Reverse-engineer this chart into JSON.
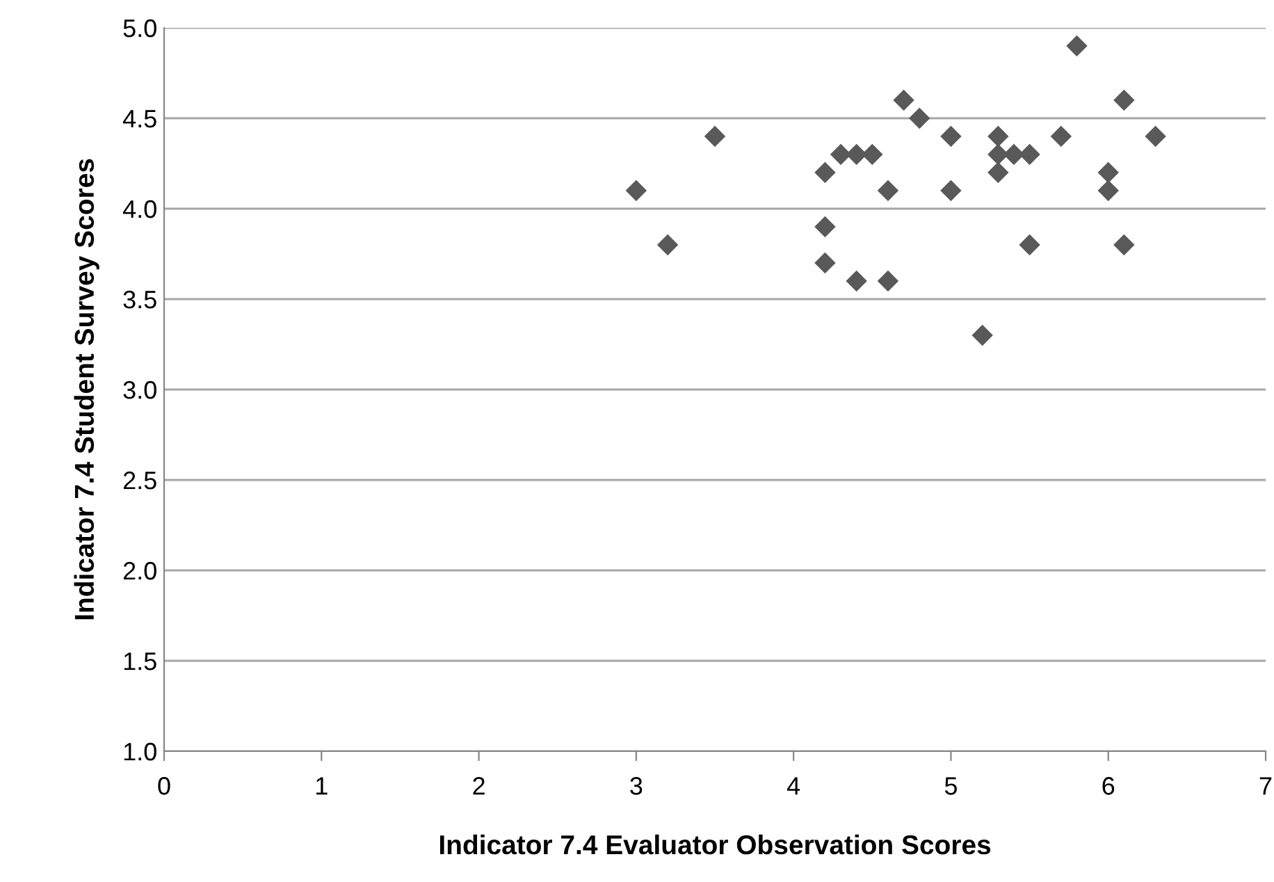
{
  "chart_data": {
    "type": "scatter",
    "xlabel": "Indicator 7.4 Evaluator Observation Scores",
    "ylabel": "Indicator 7.4 Student Survey Scores",
    "x": [
      3.0,
      3.2,
      3.5,
      4.2,
      4.2,
      4.2,
      4.3,
      4.4,
      4.5,
      4.4,
      4.6,
      4.6,
      4.7,
      4.8,
      5.0,
      5.0,
      5.2,
      5.3,
      5.3,
      5.3,
      5.4,
      5.5,
      5.5,
      5.7,
      5.8,
      6.0,
      6.0,
      6.1,
      6.1,
      6.3
    ],
    "values": [
      4.1,
      3.8,
      4.4,
      4.2,
      3.9,
      3.7,
      4.3,
      4.3,
      4.3,
      3.6,
      3.6,
      4.1,
      4.6,
      4.5,
      4.4,
      4.1,
      3.3,
      4.4,
      4.3,
      4.2,
      4.3,
      4.3,
      3.8,
      4.4,
      4.9,
      4.2,
      4.1,
      4.6,
      3.8,
      4.4
    ],
    "color": "#595959",
    "marker": "diamond",
    "xlim": [
      0,
      7
    ],
    "xticks": [
      0,
      1,
      2,
      3,
      4,
      5,
      6,
      7
    ],
    "ylim": [
      1.0,
      5.0
    ],
    "yticks": [
      {
        "value": 1.0,
        "label": "1.0"
      },
      {
        "value": 1.5,
        "label": "1.5"
      },
      {
        "value": 2.0,
        "label": "2.0"
      },
      {
        "value": 2.5,
        "label": "2.5"
      },
      {
        "value": 3.0,
        "label": "3.0"
      },
      {
        "value": 3.5,
        "label": "3.5"
      },
      {
        "value": 4.0,
        "label": "4.0"
      },
      {
        "value": 4.5,
        "label": "4.5"
      },
      {
        "value": 5.0,
        "label": "5.0"
      }
    ],
    "grid": "y"
  }
}
